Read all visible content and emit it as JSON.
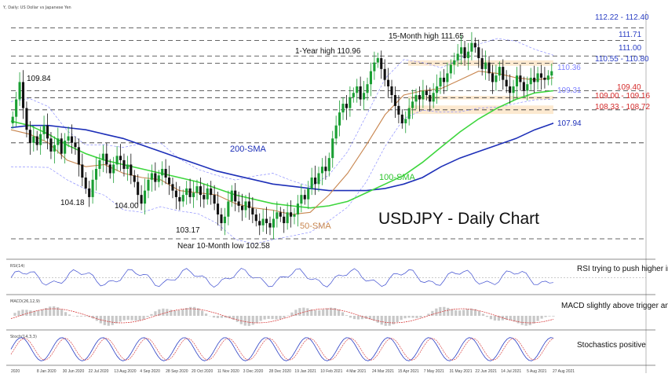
{
  "header": {
    "caption": "Y, Daily: US Dollar vs Japanese Yen"
  },
  "chart_data": {
    "type": "candlestick",
    "title": "USDJPY - Daily Chart",
    "price_axis": {
      "ymin": 102.0,
      "ymax": 113.0
    },
    "x_labels": [
      "2020",
      "8 Jan 2020",
      "30 Jun 2020",
      "22 Jul 2020",
      "13 Aug 2020",
      "4 Sep 2020",
      "28 Sep 2020",
      "20 Oct 2020",
      "11 Nov 2020",
      "3 Dec 2020",
      "28 Dec 2020",
      "19 Jan 2021",
      "10 Feb 2021",
      "4 Mar 2021",
      "24 Mar 2021",
      "15 Apr 2021",
      "7 May 2021",
      "31 May 2021",
      "22 Jun 2021",
      "14 Jul 2021",
      "5 Aug 2021",
      "27 Aug 2021"
    ],
    "levels": [
      {
        "label": "112.22 - 112.40",
        "value": 112.3,
        "color": "#2b3fc4",
        "style": "dashed"
      },
      {
        "label": "111.71",
        "value": 111.71,
        "color": "#2b3fc4",
        "style": "dashed"
      },
      {
        "label": "111.00",
        "value": 111.0,
        "color": "#2b3fc4",
        "style": "dashed"
      },
      {
        "label": "110.55 - 110.80",
        "value": 110.67,
        "color": "#2b3fc4",
        "style": "dashed"
      },
      {
        "label": "109.40",
        "value": 109.4,
        "color": "#d42a2a",
        "style": "dashed"
      },
      {
        "label": "109.00 - 109.16",
        "value": 109.08,
        "color": "#d42a2a",
        "style": "dashed"
      },
      {
        "label": "108.33 - 108.72",
        "value": 108.52,
        "color": "#d42a2a",
        "style": "dashed"
      },
      {
        "label": "",
        "value": 107.0,
        "color": "#333333",
        "style": "dashed"
      },
      {
        "label": "",
        "value": 102.58,
        "color": "#333333",
        "style": "dashed"
      }
    ],
    "indicator_labels": {
      "sma200_value": "107.94",
      "sma50_value": "110.36",
      "sma100_value": "109.31",
      "sma200": "200-SMA",
      "sma100": "100-SMA",
      "sma50": "50-SMA"
    },
    "annotations": [
      {
        "text": "15-Month high 111.65"
      },
      {
        "text": "1-Year high 110.96"
      },
      {
        "text": "109.84"
      },
      {
        "text": "104.18"
      },
      {
        "text": "104.00"
      },
      {
        "text": "103.17"
      },
      {
        "text": "Near 10-Month low 102.58"
      }
    ],
    "close_series": [
      108.2,
      109.0,
      109.8,
      108.6,
      107.6,
      107.0,
      107.3,
      106.9,
      107.4,
      107.8,
      107.2,
      106.6,
      106.9,
      107.2,
      106.5,
      107.1,
      107.3,
      107.0,
      106.8,
      106.0,
      105.4,
      104.9,
      104.5,
      105.3,
      105.8,
      106.2,
      106.5,
      106.0,
      105.6,
      106.0,
      106.4,
      106.2,
      105.8,
      106.0,
      105.5,
      105.2,
      104.6,
      104.2,
      104.8,
      105.3,
      105.6,
      105.2,
      105.5,
      105.8,
      105.4,
      105.1,
      104.8,
      104.5,
      104.3,
      104.6,
      104.9,
      104.5,
      104.7,
      105.0,
      104.6,
      104.4,
      104.9,
      104.6,
      104.2,
      103.7,
      103.3,
      103.6,
      104.3,
      104.8,
      104.3,
      104.1,
      103.9,
      104.3,
      104.0,
      103.7,
      103.4,
      103.2,
      103.5,
      103.3,
      103.1,
      103.5,
      103.8,
      103.6,
      103.3,
      103.8,
      103.6,
      103.7,
      104.2,
      104.6,
      104.4,
      104.9,
      105.4,
      105.1,
      105.6,
      105.9,
      105.7,
      106.3,
      107.2,
      107.8,
      108.4,
      108.8,
      108.6,
      109.1,
      109.3,
      109.6,
      109.0,
      109.3,
      109.7,
      110.3,
      110.7,
      110.9,
      110.4,
      109.9,
      109.6,
      109.2,
      108.7,
      108.3,
      107.9,
      108.1,
      108.6,
      108.9,
      109.2,
      109.0,
      109.4,
      109.2,
      108.9,
      109.3,
      109.6,
      110.0,
      109.8,
      110.2,
      110.6,
      110.8,
      111.1,
      111.4,
      110.9,
      111.2,
      111.6,
      111.4,
      110.9,
      110.4,
      110.7,
      110.2,
      109.8,
      110.1,
      110.5,
      109.9,
      109.6,
      109.3,
      109.6,
      110.1,
      109.8,
      109.4,
      109.7,
      110.0,
      109.8,
      110.2,
      110.0,
      109.9,
      110.1,
      110.3
    ],
    "smas": {
      "sma200": [
        107.7,
        107.8,
        107.8,
        107.7,
        107.6,
        107.4,
        107.2,
        106.9,
        106.6,
        106.3,
        106.0,
        105.7,
        105.5,
        105.3,
        105.1,
        105.0,
        104.9,
        104.8,
        104.8,
        104.8,
        104.9,
        105.1,
        105.4,
        105.9,
        106.3,
        106.6,
        106.9,
        107.2,
        107.6,
        107.9
      ],
      "sma100": [
        108.0,
        107.8,
        107.4,
        106.9,
        106.5,
        106.2,
        106.0,
        105.8,
        105.6,
        105.4,
        105.2,
        104.9,
        104.6,
        104.4,
        104.2,
        104.1,
        104.0,
        104.1,
        104.3,
        104.7,
        105.1,
        105.5,
        106.1,
        106.8,
        107.5,
        108.1,
        108.6,
        109.0,
        109.3,
        109.4
      ],
      "sma50": [
        107.6,
        107.4,
        107.0,
        106.2,
        105.9,
        106.0,
        105.6,
        105.4,
        105.3,
        104.8,
        104.7,
        104.6,
        104.2,
        104.0,
        103.9,
        103.7,
        103.8,
        104.6,
        105.6,
        106.9,
        108.3,
        109.2,
        109.4,
        109.5,
        109.9,
        110.3,
        110.2,
        110.0,
        109.9,
        110.0
      ]
    },
    "indicators": [
      {
        "name": "RSI",
        "header": "RSI(14)",
        "comment": "RSI trying to push higher in bullish zone"
      },
      {
        "name": "MACD",
        "header": "MACD(26,12,9)",
        "comment": "MACD slightly above trigger and zero lines"
      },
      {
        "name": "Stochastics",
        "header": "Stoch(14,3,3)",
        "comment": "Stochastics positive"
      }
    ],
    "colors": {
      "up": "#1a9f33",
      "down": "#111111",
      "sma200": "#1d2fb8",
      "sma100": "#3dd63d",
      "sma50": "#c8864f",
      "boll": "#7d80ff",
      "zone": "#fbe3c4"
    }
  }
}
